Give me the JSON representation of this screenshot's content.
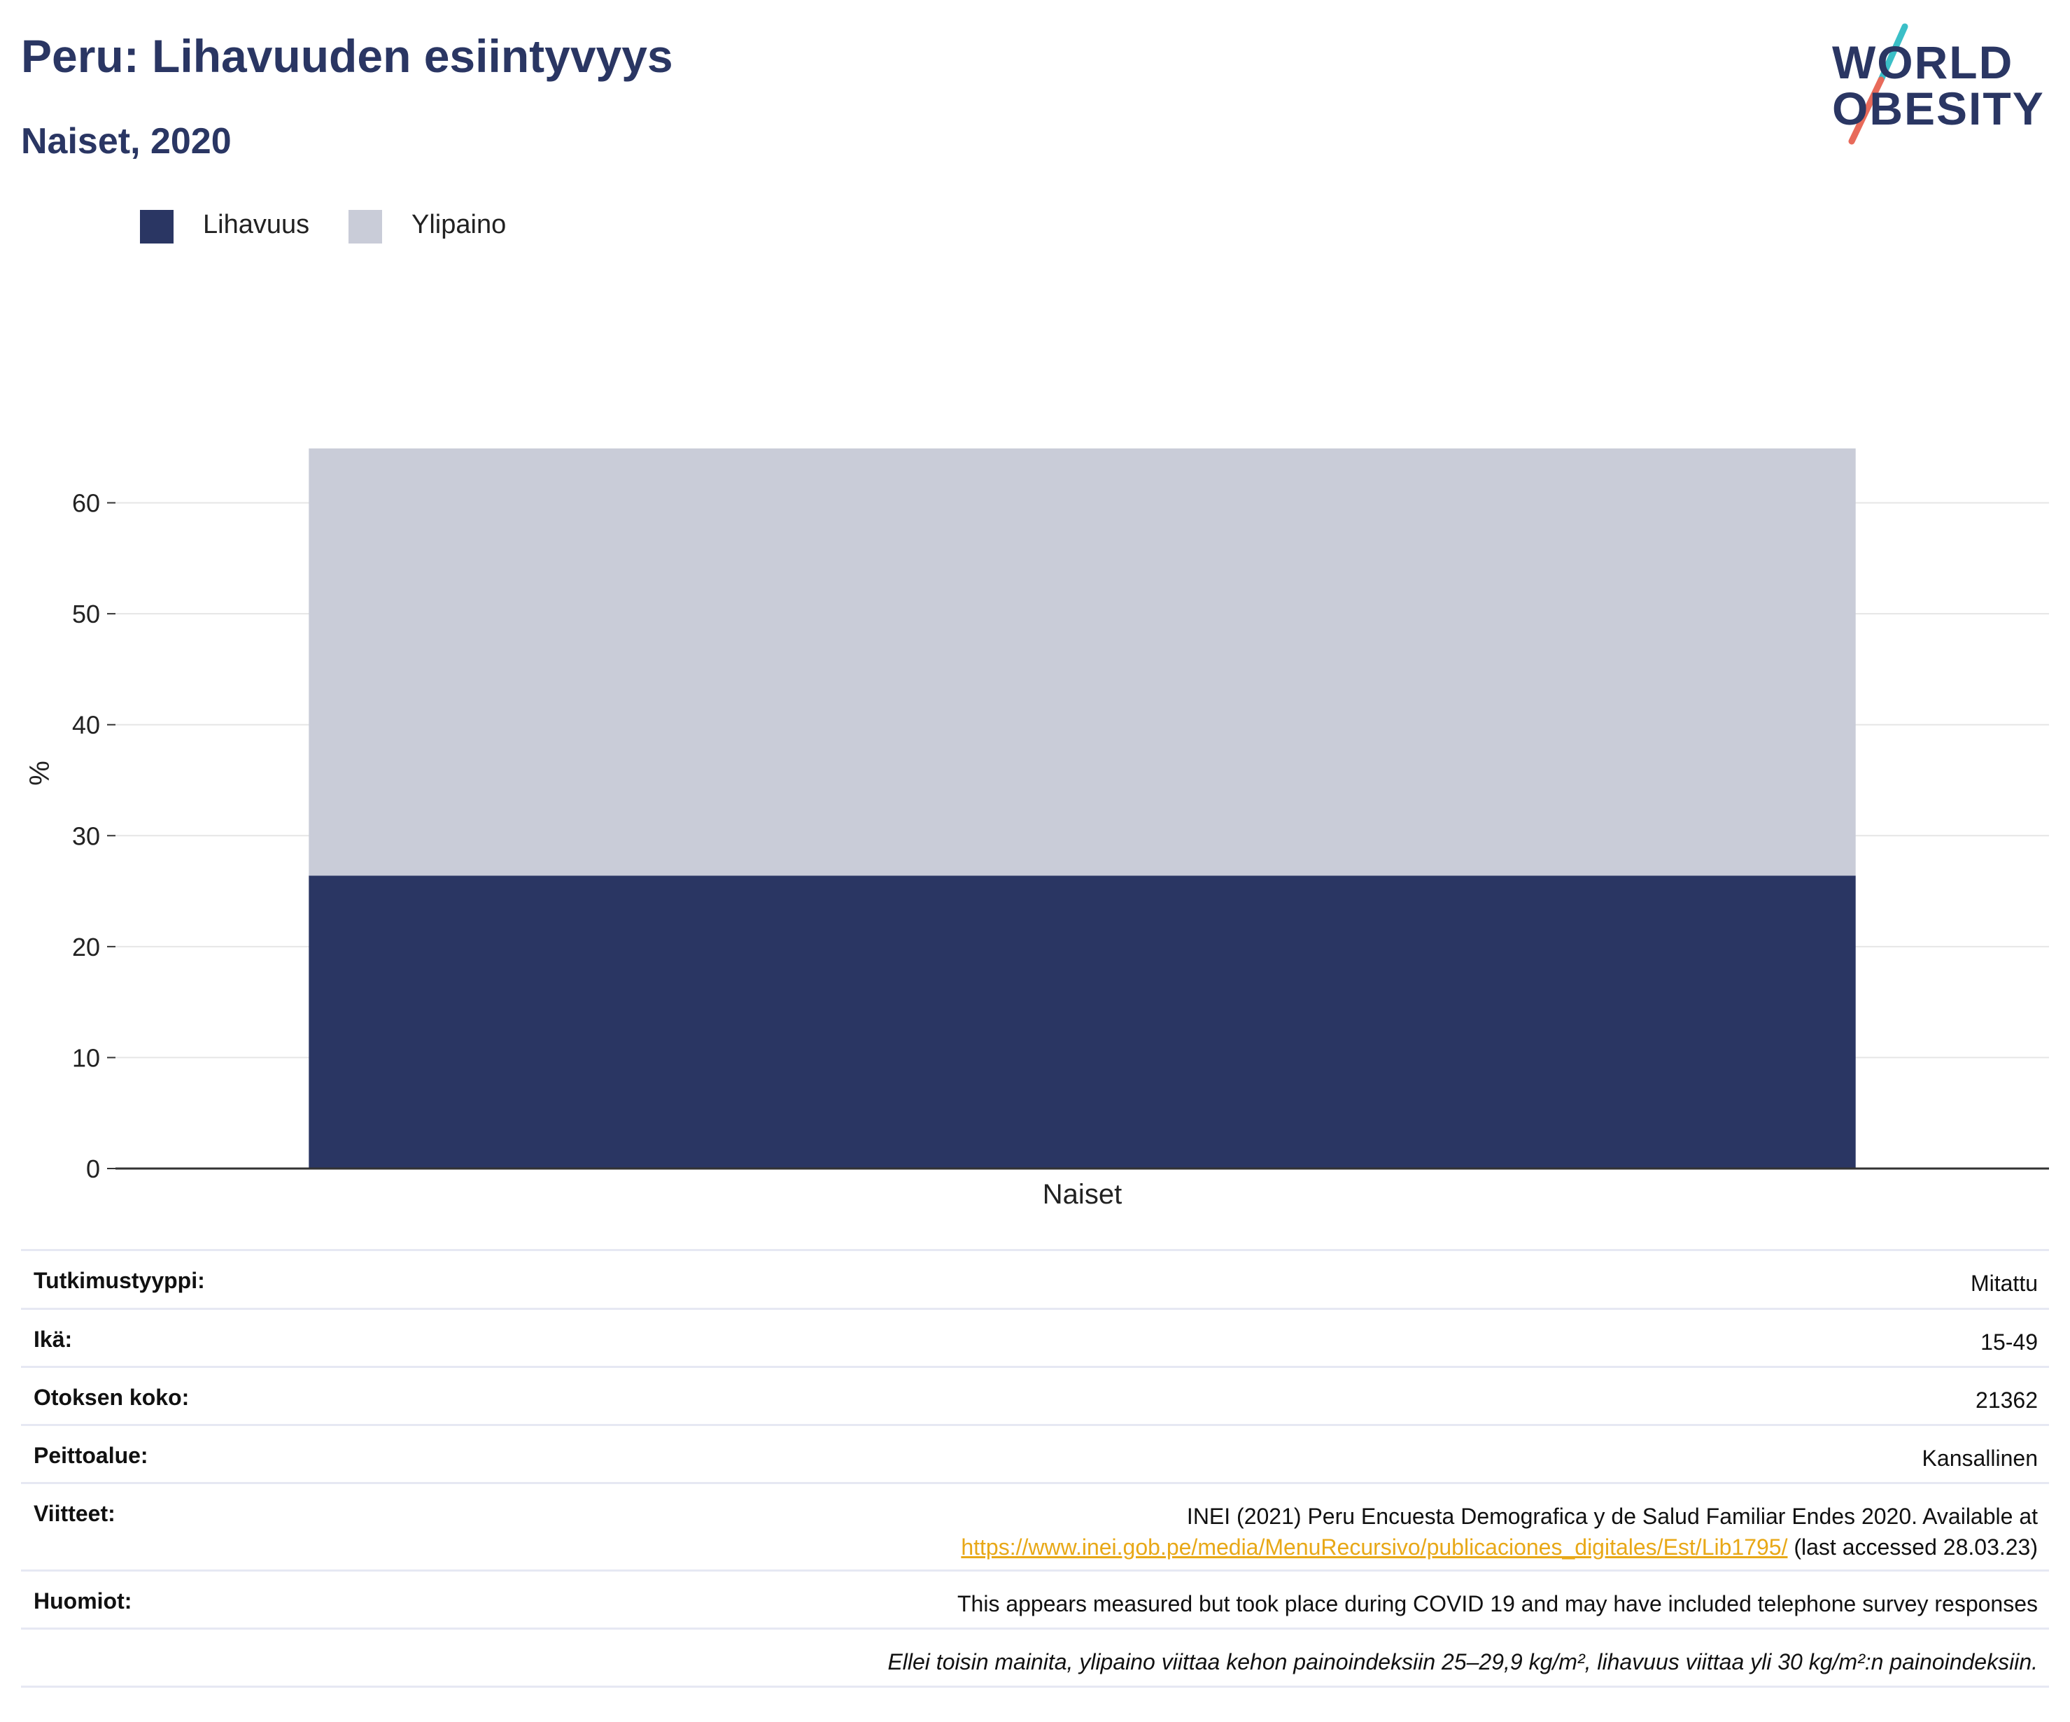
{
  "header": {
    "title": "Peru: Lihavuuden esiintyvyys",
    "subtitle": "Naiset, 2020"
  },
  "logo": {
    "line1": "WORLD",
    "line2": "OBESITY",
    "colors": {
      "text": "#2a3663",
      "slash_top": "#3bbfc7",
      "slash_bottom": "#e86a5a"
    }
  },
  "legend": [
    {
      "label": "Lihavuus",
      "color": "#2a3663"
    },
    {
      "label": "Ylipaino",
      "color": "#c9ccd8"
    }
  ],
  "chart_data": {
    "type": "bar",
    "stacked": true,
    "categories": [
      "Naiset"
    ],
    "series": [
      {
        "name": "Lihavuus",
        "values": [
          26.4
        ],
        "color": "#2a3663"
      },
      {
        "name": "Ylipaino",
        "values": [
          38.5
        ],
        "color": "#c9ccd8"
      }
    ],
    "ylabel": "%",
    "xlabel": "",
    "ylim": [
      0,
      70
    ],
    "yticks": [
      0,
      10,
      20,
      30,
      40,
      50,
      60
    ],
    "grid": true,
    "legend_position": "top-left"
  },
  "details": [
    {
      "key": "Tutkimustyyppi:",
      "value": "Mitattu"
    },
    {
      "key": "Ikä:",
      "value": "15-49"
    },
    {
      "key": "Otoksen koko:",
      "value": "21362"
    },
    {
      "key": "Peittoalue:",
      "value": "Kansallinen"
    },
    {
      "key": "Viitteet:",
      "value": "INEI (2021) Peru Encuesta Demografica y de Salud Familiar Endes 2020. Available at",
      "link": "https://www.inei.gob.pe/media/MenuRecursivo/publicaciones_digitales/Est/Lib1795/",
      "suffix": " (last accessed 28.03.23)"
    },
    {
      "key": "Huomiot:",
      "value": "This appears measured but took place during COVID 19 and may have included telephone survey responses"
    }
  ],
  "footnote": "Ellei toisin mainita, ylipaino viittaa kehon painoindeksiin 25–29,9 kg/m², lihavuus viittaa yli 30 kg/m²:n painoindeksiin."
}
